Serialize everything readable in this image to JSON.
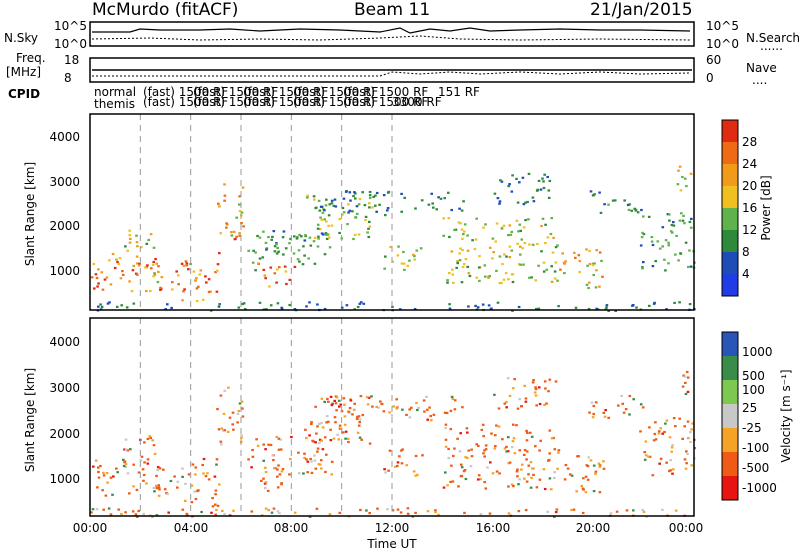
{
  "header": {
    "station": "McMurdo (fitACF)",
    "beam": "Beam 11",
    "date": "21/Jan/2015"
  },
  "noise_panel": {
    "left_label": "N.Sky",
    "right_label": "N.Search",
    "right_dots": "......",
    "left_ticks": [
      "10^5",
      "10^0"
    ],
    "right_ticks": [
      "10^5",
      "10^0"
    ]
  },
  "freq_panel": {
    "left_label_line1": "Freq.",
    "left_label_line2": "[MHz]",
    "right_label": "Nave",
    "right_dots": "....",
    "left_ticks": [
      "18",
      "8"
    ],
    "right_ticks": [
      "60",
      "0"
    ]
  },
  "cpid": {
    "label": "CPID",
    "mode_row1": "normal",
    "mode_row2": "themis",
    "program_tail": "151 RF",
    "program_tail2": "3300 RF",
    "overlap_text": "(fast) 1500 RF"
  },
  "colors": {
    "power": [
      "#1f3ce6",
      "#1e4db8",
      "#2e8a3a",
      "#5fb34a",
      "#f0c020",
      "#f29a1a",
      "#ef6a14",
      "#e02a12"
    ],
    "velocity": [
      "#e81410",
      "#ef5a14",
      "#f5a326",
      "#c8c8c8",
      "#7dc850",
      "#3a8c4a",
      "#2a55b8"
    ]
  },
  "chart_data": [
    {
      "type": "heatmap",
      "title": "",
      "xlabel": "",
      "ylabel": "Slant Range [km]",
      "xlim": [
        "00:00",
        "24:00"
      ],
      "ylim": [
        180,
        4620
      ],
      "yticks": [
        1000,
        2000,
        3000,
        4000
      ],
      "grid": false,
      "colorbar": {
        "label": "Power [dB]",
        "ticks": [
          4,
          8,
          12,
          16,
          20,
          24,
          28
        ]
      }
    },
    {
      "type": "heatmap",
      "title": "",
      "xlabel": "Time UT",
      "ylabel": "Slant Range [km]",
      "xlim": [
        "00:00",
        "24:00"
      ],
      "ylim": [
        180,
        4620
      ],
      "xticks": [
        "00:00",
        "04:00",
        "08:00",
        "12:00",
        "16:00",
        "20:00",
        "00:00"
      ],
      "yticks": [
        1000,
        2000,
        3000,
        4000
      ],
      "grid": false,
      "colorbar": {
        "label": "Velocity [m s⁻¹]",
        "ticks": [
          1000,
          500,
          100,
          25,
          -25,
          -100,
          -500,
          -1000
        ]
      }
    }
  ]
}
